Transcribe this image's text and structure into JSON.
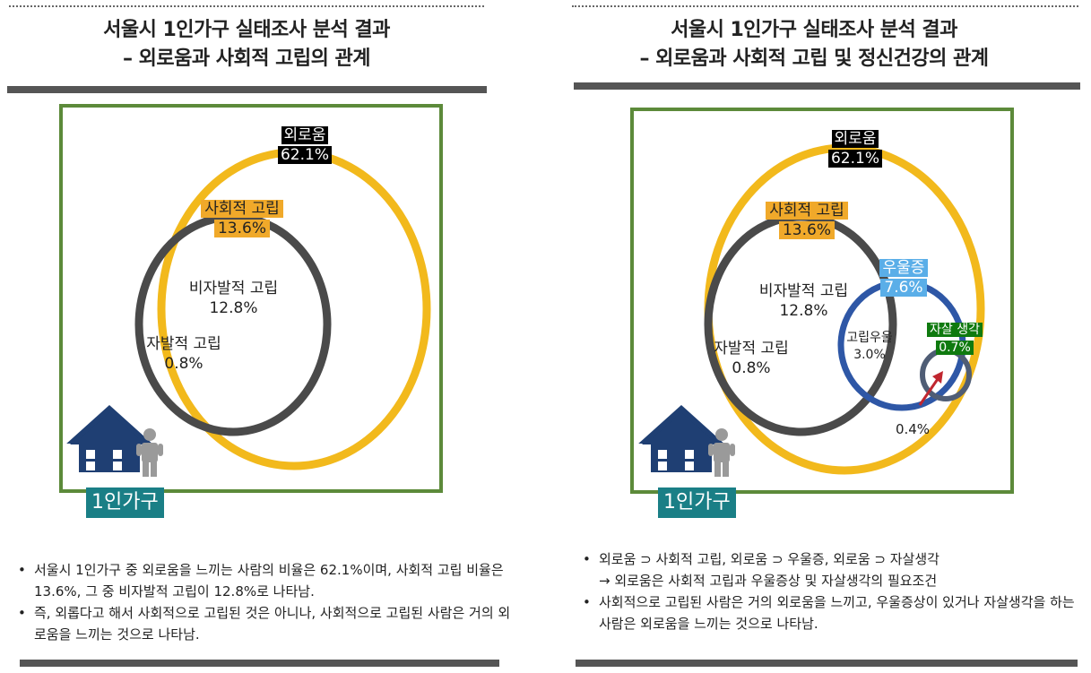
{
  "left": {
    "title_line1": "서울시 1인가구 실태조사 분석 결과",
    "title_line2": "– 외로움과 사회적 고립의 관계",
    "loneliness": {
      "name": "외로움",
      "value": "62.1%"
    },
    "social_isolation": {
      "name": "사회적 고립",
      "value": "13.6%"
    },
    "involuntary": {
      "name": "비자발적 고립",
      "value": "12.8%"
    },
    "voluntary": {
      "name": "자발적 고립",
      "value": "0.8%"
    },
    "household_tag": "1인가구",
    "bullets": [
      "서울시 1인가구 중 외로움을 느끼는 사람의 비율은 62.1%이며, 사회적 고립 비율은 13.6%, 그 중 비자발적 고립이 12.8%로 나타남.",
      "즉, 외롭다고 해서 사회적으로 고립된 것은 아니나, 사회적으로 고립된 사람은 거의 외로움을 느끼는 것으로 나타남."
    ]
  },
  "right": {
    "title_line1": "서울시 1인가구 실태조사 분석 결과",
    "title_line2": "– 외로움과 사회적 고립 및 정신건강의 관계",
    "loneliness": {
      "name": "외로움",
      "value": "62.1%"
    },
    "social_isolation": {
      "name": "사회적 고립",
      "value": "13.6%"
    },
    "involuntary": {
      "name": "비자발적 고립",
      "value": "12.8%"
    },
    "voluntary": {
      "name": "자발적 고립",
      "value": "0.8%"
    },
    "depression": {
      "name": "우울증",
      "value": "7.6%"
    },
    "isolated_depressed": {
      "name": "고립우울",
      "value": "3.0%"
    },
    "suicidal": {
      "name": "자살 생각",
      "value": "0.7%"
    },
    "overlap_value": "0.4%",
    "household_tag": "1인가구",
    "bullet1": "외로움 ⊃ 사회적 고립, 외로움 ⊃ 우울증, 외로움 ⊃ 자살생각",
    "bullet1_sub": "→ 외로움은 사회적 고립과 우울증상 및 자살생각의 필요조건",
    "bullet2": "사회적으로 고립된 사람은 거의 외로움을 느끼고, 우울증상이 있거나 자살생각을 하는 사람은 외로움을 느끼는 것으로 나타남."
  },
  "colors": {
    "loneliness_ring": "#f2b91c",
    "isolation_ring": "#4a4a4a",
    "depression_ring": "#2e57a6",
    "suicidal_ring": "#4f5d75",
    "frame": "#5c8a3a",
    "house": "#1f3f73",
    "person": "#9a9a9a",
    "arrow": "#c0262f"
  },
  "icons": [
    "house-icon",
    "person-icon",
    "arrow-icon"
  ]
}
